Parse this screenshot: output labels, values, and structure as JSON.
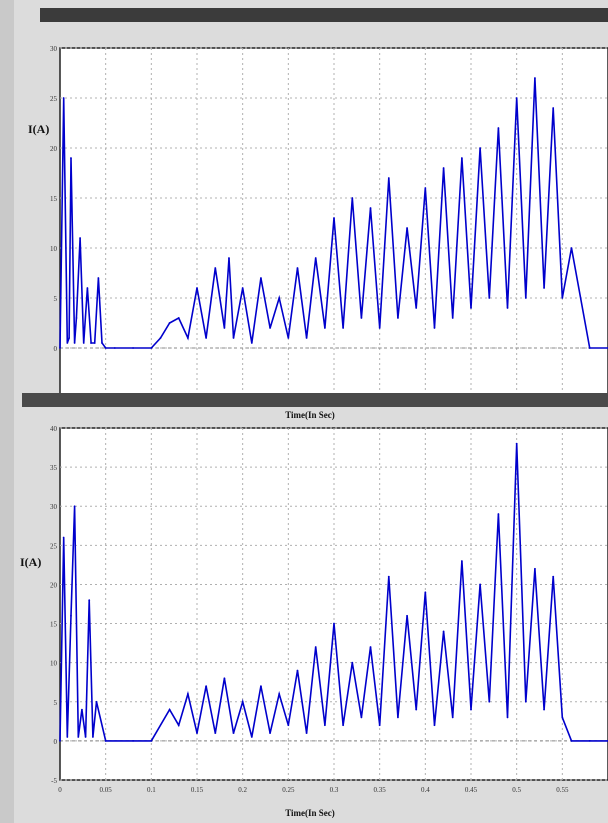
{
  "chart_data": [
    {
      "type": "line",
      "ylabel": "I(A)",
      "xlabel": "Time(In Sec)",
      "ylim": [
        -5,
        30
      ],
      "yticks": [
        "-5",
        "0",
        "5",
        "10",
        "15",
        "20",
        "25",
        "30"
      ],
      "xlim": [
        0,
        0.6
      ],
      "grid": true,
      "series": [
        {
          "color": "#0000cc",
          "x": [
            0,
            0.004,
            0.008,
            0.01,
            0.012,
            0.016,
            0.018,
            0.022,
            0.026,
            0.03,
            0.034,
            0.038,
            0.042,
            0.046,
            0.05,
            0.06,
            0.08,
            0.1,
            0.11,
            0.12,
            0.13,
            0.14,
            0.15,
            0.16,
            0.17,
            0.18,
            0.185,
            0.19,
            0.2,
            0.21,
            0.22,
            0.23,
            0.24,
            0.25,
            0.26,
            0.27,
            0.28,
            0.29,
            0.3,
            0.31,
            0.32,
            0.33,
            0.34,
            0.35,
            0.36,
            0.37,
            0.38,
            0.39,
            0.4,
            0.41,
            0.42,
            0.43,
            0.44,
            0.45,
            0.46,
            0.47,
            0.48,
            0.49,
            0.5,
            0.51,
            0.52,
            0.53,
            0.54,
            0.55,
            0.56,
            0.58,
            0.6
          ],
          "y": [
            0,
            25,
            0.5,
            1,
            19,
            0.5,
            3,
            11,
            0.5,
            6,
            0.5,
            0.5,
            7,
            0.5,
            0,
            0,
            0,
            0,
            1,
            2.5,
            3,
            1,
            6,
            1,
            8,
            2,
            9,
            1,
            6,
            0.5,
            7,
            2,
            5,
            1,
            8,
            1,
            9,
            2,
            13,
            2,
            15,
            3,
            14,
            2,
            17,
            3,
            12,
            4,
            16,
            2,
            18,
            3,
            19,
            4,
            20,
            5,
            22,
            4,
            25,
            5,
            27,
            6,
            24,
            5,
            10,
            0,
            0
          ]
        }
      ]
    },
    {
      "type": "line",
      "ylabel": "I(A)",
      "xlabel": "Time(In Sec)",
      "ylim": [
        -5,
        40
      ],
      "yticks": [
        "-5",
        "0",
        "5",
        "10",
        "15",
        "20",
        "25",
        "30",
        "35",
        "40"
      ],
      "xlim": [
        0,
        0.6
      ],
      "xticks": [
        "0",
        "0.05",
        "0.1",
        "0.15",
        "0.2",
        "0.25",
        "0.3",
        "0.35",
        "0.4",
        "0.45",
        "0.5",
        "0.55"
      ],
      "grid": true,
      "series": [
        {
          "color": "#0000cc",
          "x": [
            0,
            0.004,
            0.008,
            0.012,
            0.016,
            0.02,
            0.024,
            0.028,
            0.032,
            0.036,
            0.04,
            0.05,
            0.08,
            0.1,
            0.12,
            0.13,
            0.14,
            0.15,
            0.16,
            0.17,
            0.18,
            0.19,
            0.2,
            0.21,
            0.22,
            0.23,
            0.24,
            0.25,
            0.26,
            0.27,
            0.28,
            0.29,
            0.3,
            0.31,
            0.32,
            0.33,
            0.34,
            0.35,
            0.36,
            0.37,
            0.38,
            0.39,
            0.4,
            0.41,
            0.42,
            0.43,
            0.44,
            0.45,
            0.46,
            0.47,
            0.48,
            0.49,
            0.5,
            0.51,
            0.52,
            0.53,
            0.54,
            0.55,
            0.56,
            0.58,
            0.6
          ],
          "y": [
            0,
            26,
            0.5,
            16,
            30,
            0.5,
            4,
            0.5,
            18,
            0.5,
            5,
            0,
            0,
            0,
            4,
            2,
            6,
            1,
            7,
            1,
            8,
            1,
            5,
            0.5,
            7,
            1,
            6,
            2,
            9,
            1,
            12,
            2,
            15,
            2,
            10,
            3,
            12,
            2,
            21,
            3,
            16,
            4,
            19,
            2,
            14,
            3,
            23,
            4,
            20,
            5,
            29,
            3,
            38,
            5,
            22,
            4,
            21,
            3,
            0,
            0,
            0
          ]
        }
      ]
    }
  ]
}
